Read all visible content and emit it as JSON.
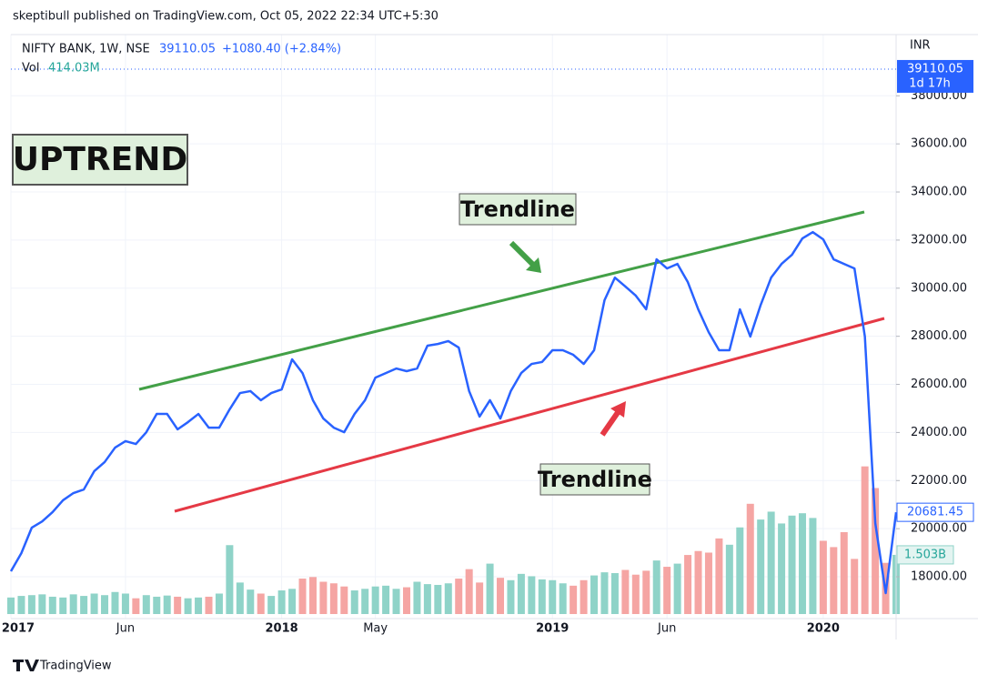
{
  "header": {
    "publisher": "skeptibull published on TradingView.com, Oct 05, 2022 22:34 UTC+5:30",
    "symbol": "NIFTY BANK, 1W, NSE",
    "price": "39110.05",
    "change": "+1080.40 (+2.84%)",
    "vol_label": "Vol",
    "vol_value": "414.03M",
    "currency": "INR",
    "countdown": "1d 17h"
  },
  "annotations": {
    "uptrend": "UPTREND",
    "upper_trendline": "Trendline",
    "lower_trendline": "Trendline"
  },
  "footer": {
    "brand": "TradingView"
  },
  "chart_data": {
    "type": "line",
    "categories": [
      "2017",
      null,
      null,
      null,
      null,
      null,
      null,
      null,
      null,
      null,
      null,
      "Jun",
      null,
      null,
      null,
      null,
      null,
      null,
      null,
      null,
      null,
      null,
      null,
      null,
      null,
      null,
      "2018",
      null,
      null,
      null,
      null,
      null,
      null,
      null,
      null,
      "May",
      null,
      null,
      null,
      null,
      null,
      null,
      null,
      null,
      null,
      null,
      null,
      null,
      null,
      null,
      null,
      null,
      "2019",
      null,
      null,
      null,
      null,
      null,
      null,
      null,
      null,
      null,
      null,
      "Jun",
      null,
      null,
      null,
      null,
      null,
      null,
      null,
      null,
      null,
      null,
      null,
      null,
      null,
      null,
      "2020",
      null,
      null,
      null,
      null,
      null,
      null,
      null
    ],
    "last_price": 39110.05,
    "series": [
      {
        "name": "NIFTY BANK",
        "color": "#2962ff",
        "values": [
          18230,
          18980,
          20040,
          20300,
          20690,
          21180,
          21480,
          21630,
          22390,
          22770,
          23370,
          23640,
          23520,
          24010,
          24770,
          24770,
          24130,
          24430,
          24770,
          24200,
          24200,
          24960,
          25640,
          25720,
          25340,
          25640,
          25790,
          27040,
          26470,
          25340,
          24580,
          24200,
          24010,
          24770,
          25340,
          26280,
          26470,
          26660,
          26550,
          26660,
          27610,
          27680,
          27800,
          27530,
          25720,
          24660,
          25340,
          24580,
          25720,
          26470,
          26850,
          26930,
          27420,
          27420,
          27230,
          26850,
          27420,
          29500,
          30440,
          30070,
          29690,
          29120,
          31200,
          30820,
          31010,
          30250,
          29120,
          28170,
          27420,
          27420,
          29120,
          27990,
          29310,
          30440,
          31010,
          31390,
          32070,
          32330,
          32030,
          31200,
          31010,
          30820,
          27990,
          20230,
          17320,
          20681.45
        ]
      },
      {
        "name": "Vol",
        "axis": "y2",
        "up_color": "#8fd3c8",
        "down_color": "#f5a5a3",
        "values": [
          420000000.0,
          460000000.0,
          480000000.0,
          500000000.0,
          440000000.0,
          420000000.0,
          500000000.0,
          460000000.0,
          520000000.0,
          480000000.0,
          560000000.0,
          520000000.0,
          400000000.0,
          480000000.0,
          440000000.0,
          470000000.0,
          440000000.0,
          400000000.0,
          420000000.0,
          440000000.0,
          520000000.0,
          1750000000.0,
          800000000.0,
          620000000.0,
          520000000.0,
          460000000.0,
          600000000.0,
          640000000.0,
          900000000.0,
          940000000.0,
          820000000.0,
          780000000.0,
          700000000.0,
          600000000.0,
          640000000.0,
          700000000.0,
          720000000.0,
          640000000.0,
          680000000.0,
          820000000.0,
          760000000.0,
          740000000.0,
          780000000.0,
          900000000.0,
          1140000000.0,
          800000000.0,
          1280000000.0,
          920000000.0,
          860000000.0,
          1020000000.0,
          960000000.0,
          880000000.0,
          860000000.0,
          780000000.0,
          720000000.0,
          860000000.0,
          980000000.0,
          1060000000.0,
          1040000000.0,
          1120000000.0,
          1000000000.0,
          1100000000.0,
          1360000000.0,
          1200000000.0,
          1280000000.0,
          1500000000.0,
          1600000000.0,
          1560000000.0,
          1920000000.0,
          1760000000.0,
          2200000000.0,
          2800000000.0,
          2400000000.0,
          2600000000.0,
          2300000000.0,
          2500000000.0,
          2560000000.0,
          2440000000.0,
          1860000000.0,
          1700000000.0,
          2080000000.0,
          1400000000.0,
          3750000000.0,
          3200000000.0,
          1300000000.0,
          1503000000.0
        ],
        "value_labels": [
          null,
          null,
          null,
          null,
          null,
          null,
          null,
          null,
          null,
          null,
          null,
          null,
          null,
          null,
          null,
          null,
          null,
          null,
          null,
          null,
          null,
          null,
          null,
          null,
          null,
          null,
          null,
          null,
          null,
          null,
          null,
          null,
          null,
          null,
          null,
          null,
          null,
          null,
          null,
          null,
          null,
          null,
          null,
          null,
          null,
          null,
          null,
          null,
          null,
          null,
          null,
          null,
          null,
          null,
          null,
          null,
          null,
          null,
          null,
          null,
          null,
          null,
          null,
          null,
          null,
          null,
          null,
          null,
          null,
          null,
          null,
          null,
          null,
          null,
          null,
          null,
          null,
          null,
          null,
          null,
          null,
          null,
          null,
          null,
          null,
          "1.503B"
        ]
      }
    ],
    "ylim": [
      16450,
      40470
    ],
    "yticks": [
      {
        "value": 18000,
        "label": "18000.00"
      },
      {
        "value": 20000,
        "label": "20000.00"
      },
      {
        "value": 22000,
        "label": "22000.00"
      },
      {
        "value": 24000,
        "label": "24000.00"
      },
      {
        "value": 26000,
        "label": "26000.00"
      },
      {
        "value": 28000,
        "label": "28000.00"
      },
      {
        "value": 30000,
        "label": "30000.00"
      },
      {
        "value": 32000,
        "label": "32000.00"
      },
      {
        "value": 34000,
        "label": "34000.00"
      },
      {
        "value": 36000,
        "label": "36000.00"
      },
      {
        "value": 38000,
        "label": "38000.00"
      }
    ],
    "y2lim": [
      0,
      14670000000.0
    ],
    "grid": true
  }
}
